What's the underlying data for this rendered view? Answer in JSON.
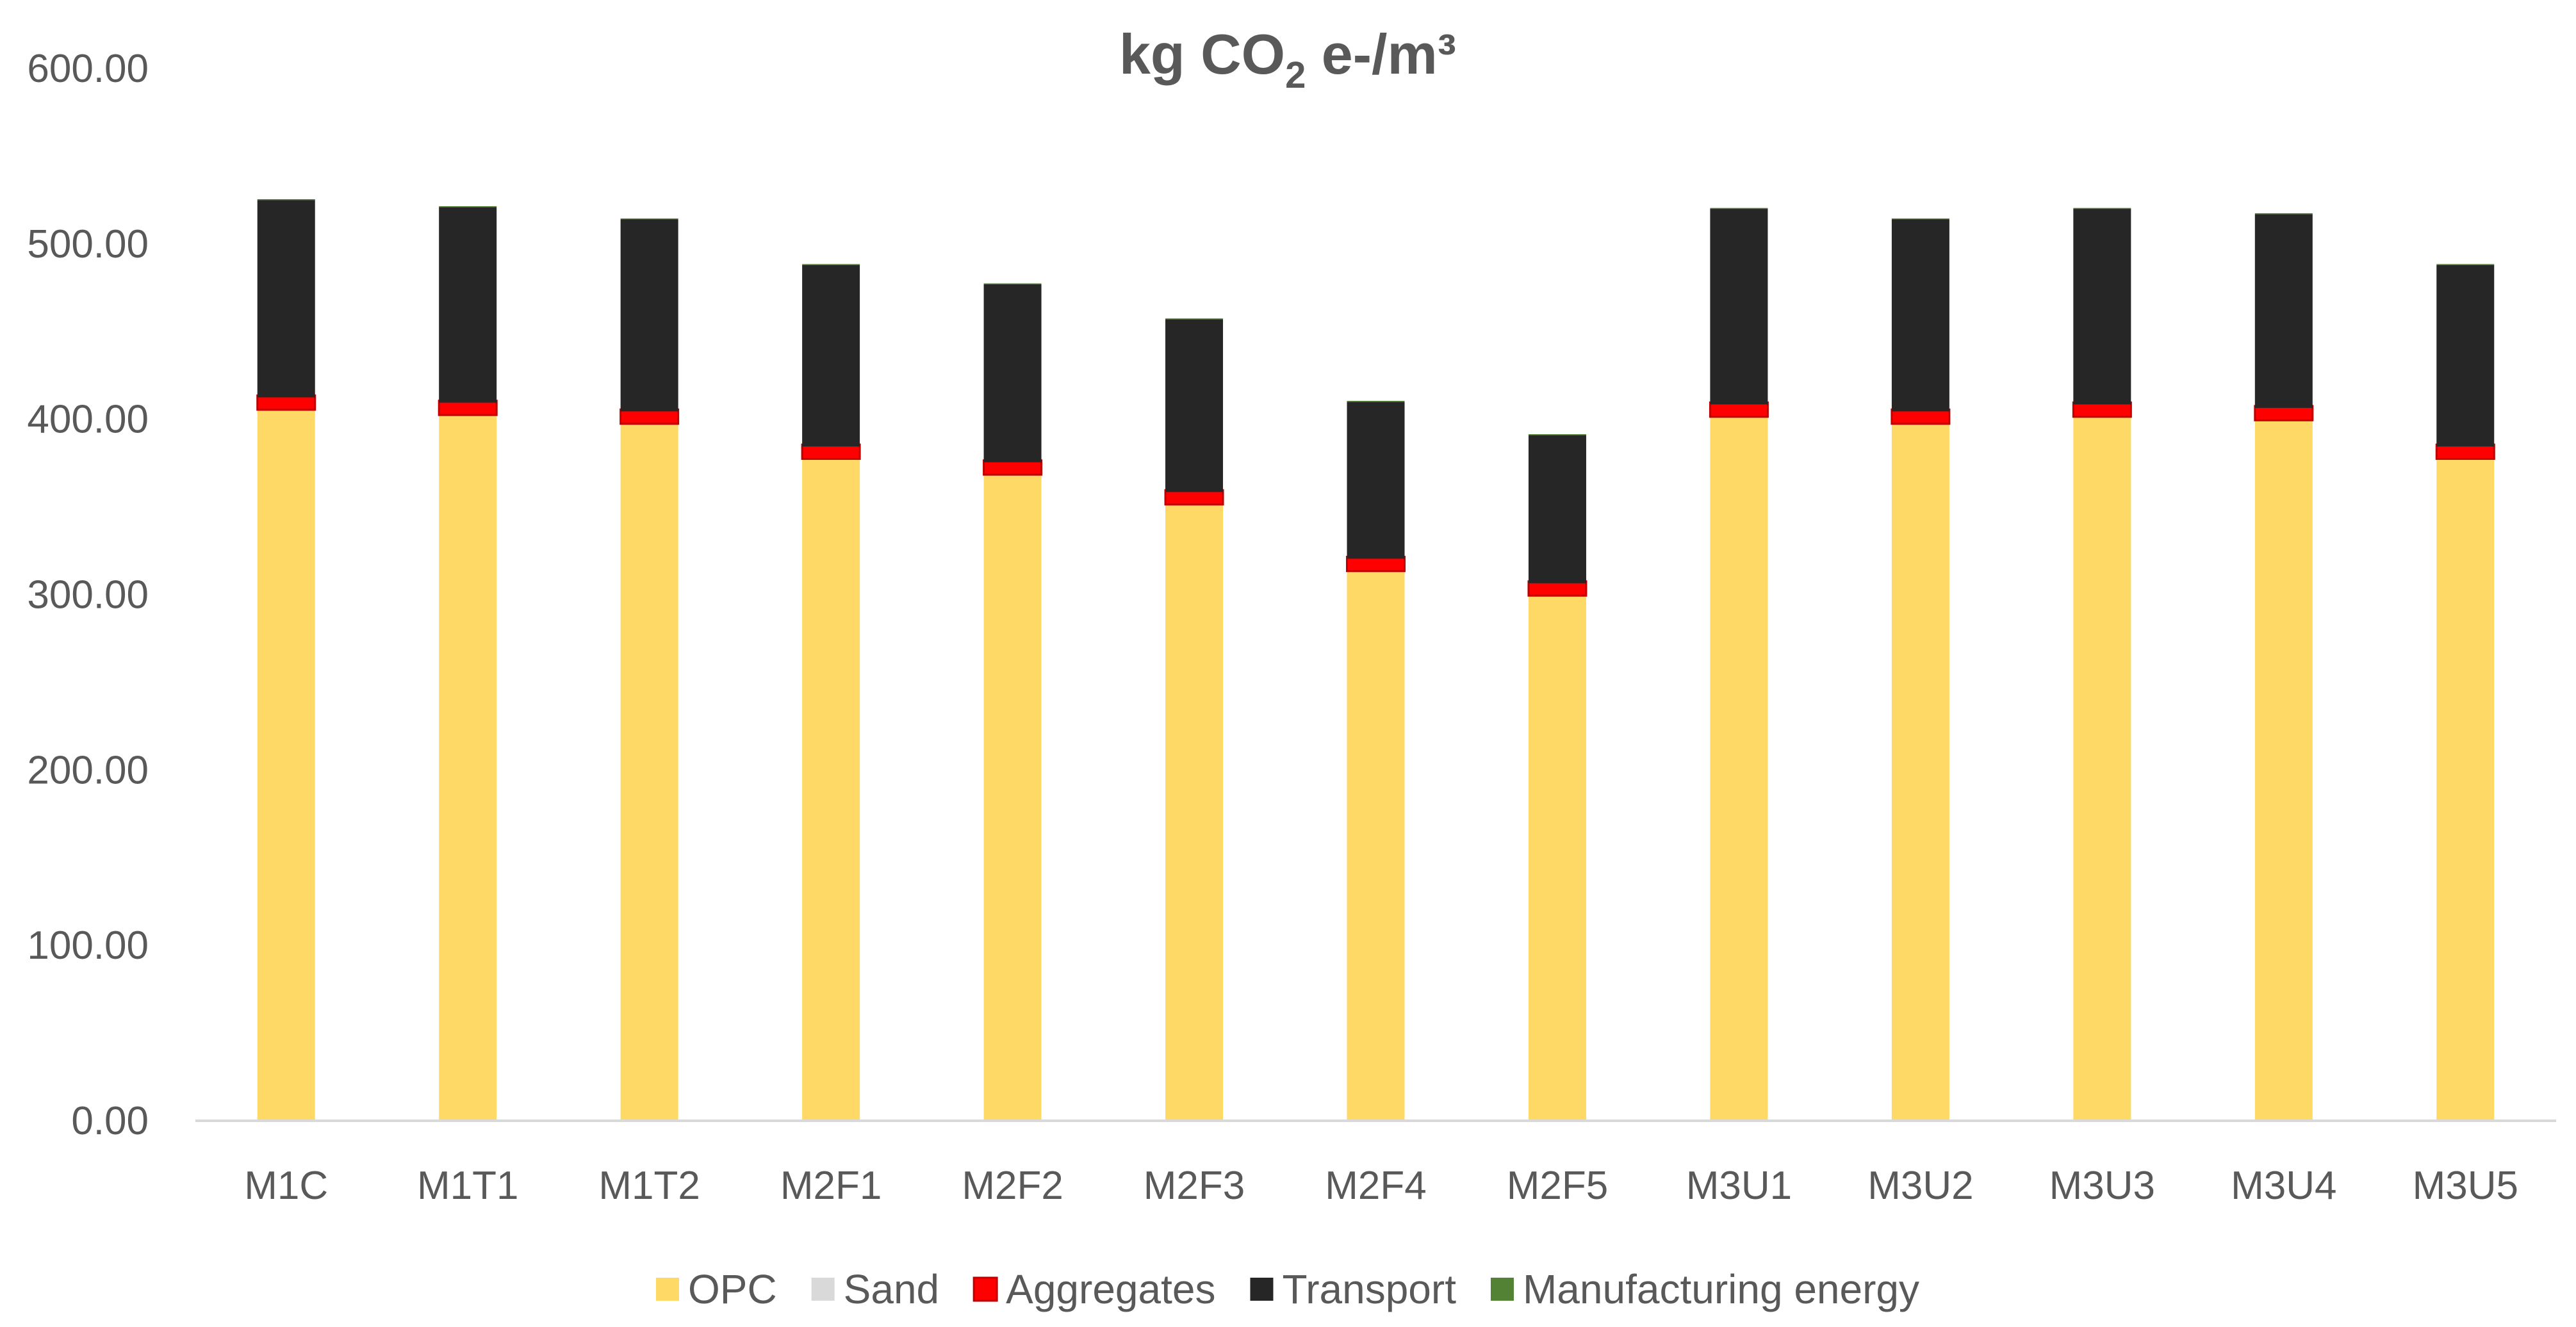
{
  "chart_data": {
    "type": "bar",
    "stacked": true,
    "title": {
      "main": "kg CO",
      "sub": "2",
      "rest": " e-/m³"
    },
    "xlabel": "",
    "ylabel": "",
    "ylim": [
      0,
      600
    ],
    "yticks": [
      0,
      100,
      200,
      300,
      400,
      500,
      600
    ],
    "ytick_labels": [
      "0.00",
      "100.00",
      "200.00",
      "300.00",
      "400.00",
      "500.00",
      "600.00"
    ],
    "categories": [
      "M1C",
      "M1T1",
      "M1T2",
      "M2F1",
      "M2F2",
      "M2F3",
      "M2F4",
      "M2F5",
      "M3U1",
      "M3U2",
      "M3U3",
      "M3U4",
      "M3U5"
    ],
    "series": [
      {
        "name": "OPC",
        "color": "#FFD966",
        "values": [
          406,
          403,
          398,
          378,
          369,
          352,
          314,
          300,
          402,
          398,
          402,
          400,
          378
        ]
      },
      {
        "name": "Sand",
        "color": "#D9D9D9",
        "values": [
          0.5,
          0.5,
          0.5,
          0.5,
          0.5,
          0.5,
          0.5,
          0.5,
          0.5,
          0.5,
          0.5,
          0.5,
          0.5
        ]
      },
      {
        "name": "Aggregates",
        "color": "#FF0000",
        "values": [
          6,
          6,
          6,
          6,
          6,
          6,
          6,
          6,
          6,
          6,
          6,
          6,
          6
        ]
      },
      {
        "name": "Transport",
        "color": "#262626",
        "values": [
          112.5,
          111.5,
          109.5,
          103.5,
          101.5,
          98.5,
          89.5,
          84.5,
          111.5,
          109.5,
          111.5,
          110.5,
          103.5
        ]
      },
      {
        "name": "Manufacturing energy",
        "color": "#548235",
        "values": [
          0.5,
          0.5,
          0.5,
          0.5,
          0.5,
          0.5,
          0.5,
          0.5,
          0.5,
          0.5,
          0.5,
          0.5,
          0.5
        ]
      }
    ],
    "legend": "bottom",
    "grid": false
  }
}
